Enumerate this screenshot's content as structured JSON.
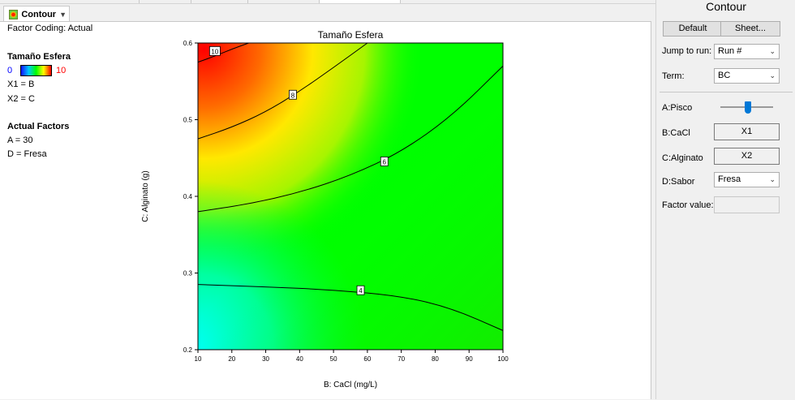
{
  "tab": {
    "label": "Contour",
    "icon": "contour-plot-icon",
    "dropdown_icon": "chevron-down-icon"
  },
  "info": {
    "factor_coding": "Factor Coding: Actual",
    "response_title": "Tamaño Esfera",
    "legend_min": "0",
    "legend_max": "10",
    "x1": "X1 = B",
    "x2": "X2 = C",
    "actual_factors_title": "Actual Factors",
    "factor_a": "A = 30",
    "factor_d": "D = Fresa"
  },
  "chart_data": {
    "type": "contour",
    "title": "Tamaño Esfera",
    "xlabel": "B: CaCl (mg/L)",
    "ylabel": "C: Alginato (g)",
    "xlim": [
      10,
      100
    ],
    "ylim": [
      0.2,
      0.6
    ],
    "x_ticks": [
      "10",
      "20",
      "30",
      "40",
      "50",
      "60",
      "70",
      "80",
      "90",
      "100"
    ],
    "y_ticks": [
      "0.2",
      "0.3",
      "0.4",
      "0.5",
      "0.6"
    ],
    "color_scale": {
      "min": 0,
      "max": 10,
      "low_color": "#00ffff",
      "mid_color": "#00ff00",
      "high_color": "#ff0000"
    },
    "contours": [
      {
        "level": "4",
        "label_at": [
          58,
          0.277
        ],
        "points": [
          [
            10,
            0.285
          ],
          [
            30,
            0.282
          ],
          [
            50,
            0.278
          ],
          [
            70,
            0.27
          ],
          [
            85,
            0.254
          ],
          [
            100,
            0.225
          ]
        ]
      },
      {
        "level": "6",
        "label_at": [
          65,
          0.445
        ],
        "points": [
          [
            10,
            0.38
          ],
          [
            25,
            0.39
          ],
          [
            40,
            0.405
          ],
          [
            55,
            0.427
          ],
          [
            70,
            0.458
          ],
          [
            85,
            0.505
          ],
          [
            100,
            0.57
          ]
        ]
      },
      {
        "level": "8",
        "label_at": [
          38,
          0.532
        ],
        "points": [
          [
            10,
            0.475
          ],
          [
            20,
            0.49
          ],
          [
            30,
            0.51
          ],
          [
            40,
            0.537
          ],
          [
            50,
            0.568
          ],
          [
            60,
            0.6
          ]
        ]
      },
      {
        "level": "10",
        "label_at": [
          15,
          0.589
        ],
        "points": [
          [
            10,
            0.575
          ],
          [
            15,
            0.583
          ],
          [
            20,
            0.592
          ],
          [
            25,
            0.6
          ]
        ]
      }
    ]
  },
  "panel": {
    "title": "Contour",
    "default_label": "Default",
    "sheet_label": "Sheet...",
    "jump_label": "Jump to run:",
    "jump_value": "Run #",
    "term_label": "Term:",
    "term_value": "BC",
    "a_label": "A:Pisco",
    "b_label": "B:CaCl",
    "b_value": "X1",
    "c_label": "C:Alginato",
    "c_value": "X2",
    "d_label": "D:Sabor",
    "d_value": "Fresa",
    "factor_value_label": "Factor value:",
    "factor_value": ""
  }
}
